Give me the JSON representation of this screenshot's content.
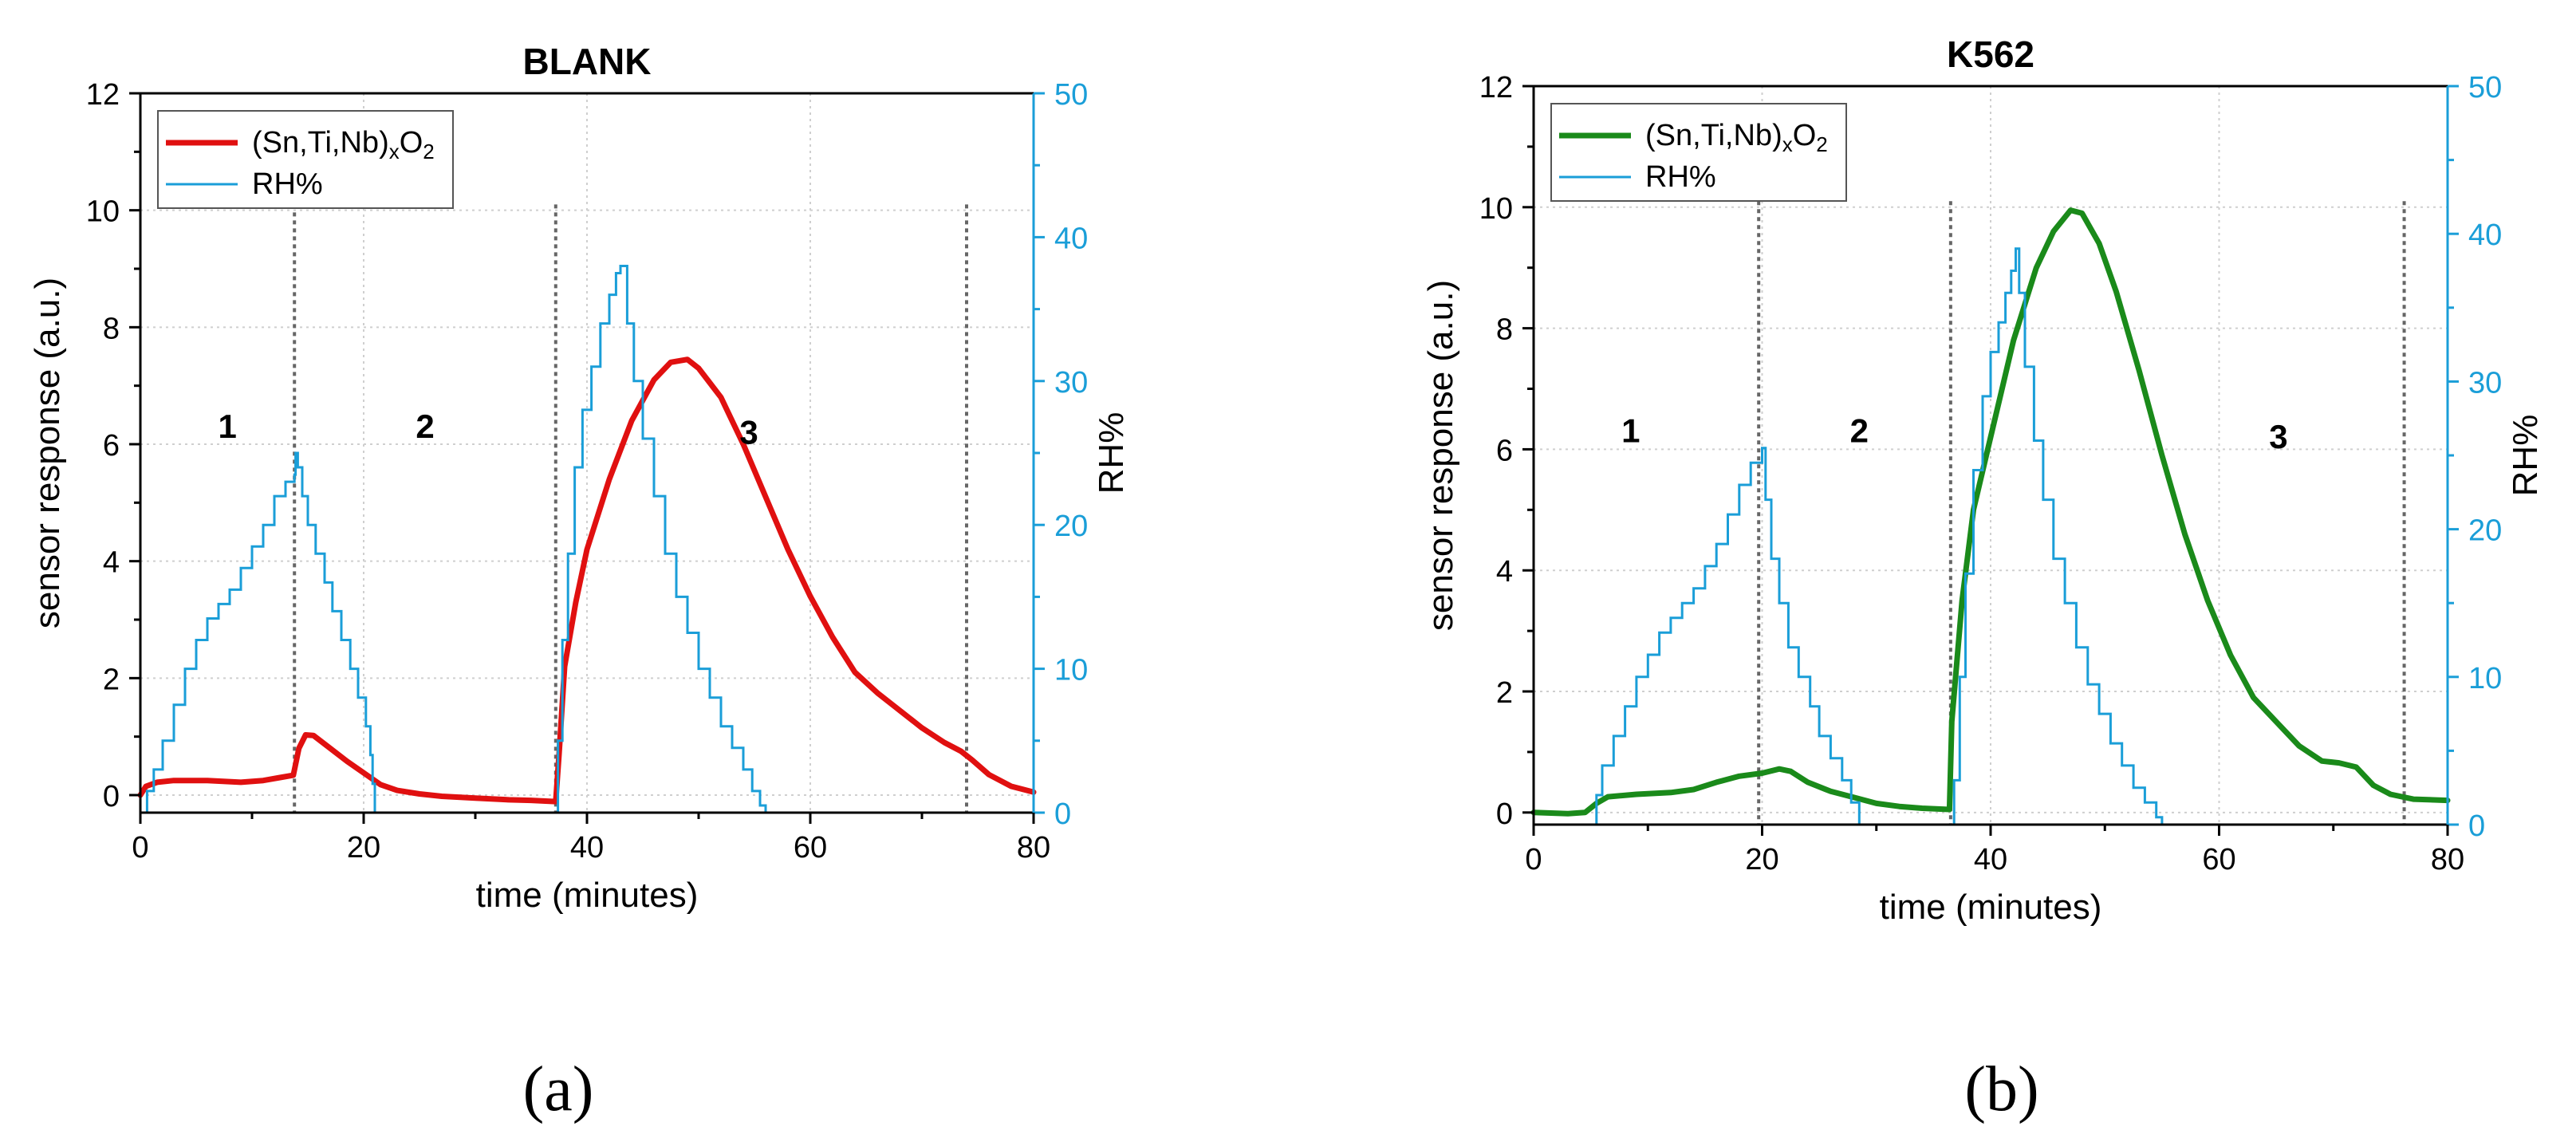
{
  "panels": [
    {
      "label": "(a)",
      "colors": {
        "response": "#e01010",
        "rh": "#1a9ed8"
      },
      "chart_data": {
        "type": "line",
        "title": "BLANK",
        "xlabel": "time (minutes)",
        "ylabel": "sensor response (a.u.)",
        "y2label": "RH%",
        "xlim": [
          0,
          80
        ],
        "ylim": [
          -0.3,
          12
        ],
        "y2lim": [
          0,
          50
        ],
        "xticks": [
          "0",
          "20",
          "40",
          "60",
          "80"
        ],
        "yticks": [
          "0",
          "2",
          "4",
          "6",
          "8",
          "10",
          "12"
        ],
        "y2ticks": [
          "0",
          "10",
          "20",
          "30",
          "40",
          "50"
        ],
        "grid": true,
        "legend_position": "top-left",
        "legend": [
          {
            "name": "(Sn,Ti,Nb)",
            "sub": "x",
            "tail": "O",
            "tail_sub": "2"
          },
          {
            "name": "RH%"
          }
        ],
        "phase_dividers": [
          13.8,
          37.2,
          74.0
        ],
        "phases": [
          {
            "text": "1",
            "x": 7.8,
            "y": 6.3
          },
          {
            "text": "2",
            "x": 25.5,
            "y": 6.3
          },
          {
            "text": "3",
            "x": 54.5,
            "y": 6.2
          }
        ],
        "series": [
          {
            "name": "(Sn,Ti,Nb)xO2",
            "axis": "left",
            "points": [
              [
                0,
                0
              ],
              [
                0.5,
                0.15
              ],
              [
                1.5,
                0.22
              ],
              [
                3,
                0.25
              ],
              [
                6,
                0.25
              ],
              [
                9,
                0.22
              ],
              [
                11,
                0.25
              ],
              [
                12.5,
                0.3
              ],
              [
                13.7,
                0.34
              ],
              [
                14.2,
                0.8
              ],
              [
                14.8,
                1.03
              ],
              [
                15.5,
                1.02
              ],
              [
                17,
                0.8
              ],
              [
                18.5,
                0.58
              ],
              [
                20,
                0.38
              ],
              [
                21.5,
                0.18
              ],
              [
                23,
                0.08
              ],
              [
                25,
                0.02
              ],
              [
                27,
                -0.02
              ],
              [
                30,
                -0.05
              ],
              [
                33,
                -0.08
              ],
              [
                35,
                -0.09
              ],
              [
                37.2,
                -0.11
              ],
              [
                37.5,
                0.7
              ],
              [
                38,
                2.2
              ],
              [
                39,
                3.3
              ],
              [
                40,
                4.2
              ],
              [
                42,
                5.4
              ],
              [
                44,
                6.4
              ],
              [
                46,
                7.1
              ],
              [
                47.5,
                7.4
              ],
              [
                49,
                7.45
              ],
              [
                50,
                7.3
              ],
              [
                52,
                6.8
              ],
              [
                54,
                6.0
              ],
              [
                56,
                5.1
              ],
              [
                58,
                4.2
              ],
              [
                60,
                3.4
              ],
              [
                62,
                2.7
              ],
              [
                64,
                2.1
              ],
              [
                66,
                1.75
              ],
              [
                68,
                1.45
              ],
              [
                70,
                1.15
              ],
              [
                72,
                0.9
              ],
              [
                73.5,
                0.75
              ],
              [
                74.5,
                0.6
              ],
              [
                76,
                0.35
              ],
              [
                78,
                0.15
              ],
              [
                80,
                0.05
              ]
            ]
          },
          {
            "name": "RH%",
            "axis": "right",
            "step": true,
            "points": [
              [
                0,
                0
              ],
              [
                0.6,
                0
              ],
              [
                0.6,
                1.5
              ],
              [
                1.2,
                3
              ],
              [
                2,
                5
              ],
              [
                3,
                7.5
              ],
              [
                4,
                10
              ],
              [
                5,
                12
              ],
              [
                6,
                13.5
              ],
              [
                7,
                14.5
              ],
              [
                8,
                15.5
              ],
              [
                9,
                17
              ],
              [
                10,
                18.5
              ],
              [
                11,
                20
              ],
              [
                12,
                22
              ],
              [
                13,
                23
              ],
              [
                13.8,
                23.5
              ],
              [
                13.9,
                25
              ],
              [
                14.1,
                24
              ],
              [
                14.5,
                22
              ],
              [
                15,
                20
              ],
              [
                15.7,
                18
              ],
              [
                16.5,
                16
              ],
              [
                17.2,
                14
              ],
              [
                18,
                12
              ],
              [
                18.8,
                10
              ],
              [
                19.5,
                8
              ],
              [
                20.2,
                6
              ],
              [
                20.6,
                4
              ],
              [
                20.8,
                2
              ],
              [
                21,
                0
              ],
              [
                37.2,
                0
              ],
              [
                37.4,
                5
              ],
              [
                37.8,
                12
              ],
              [
                38.3,
                18
              ],
              [
                38.9,
                24
              ],
              [
                39.6,
                28
              ],
              [
                40.4,
                31
              ],
              [
                41.2,
                34
              ],
              [
                42,
                36
              ],
              [
                42.6,
                37.5
              ],
              [
                43,
                38
              ],
              [
                43.4,
                38
              ],
              [
                43.6,
                34
              ],
              [
                44.2,
                30
              ],
              [
                45,
                26
              ],
              [
                46,
                22
              ],
              [
                47,
                18
              ],
              [
                48,
                15
              ],
              [
                49,
                12.5
              ],
              [
                50,
                10
              ],
              [
                51,
                8
              ],
              [
                52,
                6
              ],
              [
                53,
                4.5
              ],
              [
                54,
                3
              ],
              [
                54.8,
                1.5
              ],
              [
                55.5,
                0.5
              ],
              [
                56,
                0
              ]
            ]
          }
        ]
      }
    },
    {
      "label": "(b)",
      "colors": {
        "response": "#1a8a1a",
        "rh": "#1a9ed8"
      },
      "chart_data": {
        "type": "line",
        "title": "K562",
        "xlabel": "time (minutes)",
        "ylabel": "sensor response (a.u.)",
        "y2label": "RH%",
        "xlim": [
          0,
          80
        ],
        "ylim": [
          -0.2,
          12
        ],
        "y2lim": [
          0,
          50
        ],
        "xticks": [
          "0",
          "20",
          "40",
          "60",
          "80"
        ],
        "yticks": [
          "0",
          "2",
          "4",
          "6",
          "8",
          "10",
          "12"
        ],
        "y2ticks": [
          "0",
          "10",
          "20",
          "30",
          "40",
          "50"
        ],
        "grid": true,
        "legend_position": "top-left",
        "legend": [
          {
            "name": "(Sn,Ti,Nb)",
            "sub": "x",
            "tail": "O",
            "tail_sub": "2"
          },
          {
            "name": "RH%"
          }
        ],
        "phase_dividers": [
          19.7,
          36.5,
          76.2
        ],
        "phases": [
          {
            "text": "1",
            "x": 8.5,
            "y": 6.3
          },
          {
            "text": "2",
            "x": 28.5,
            "y": 6.3
          },
          {
            "text": "3",
            "x": 65.2,
            "y": 6.2
          }
        ],
        "series": [
          {
            "name": "(Sn,Ti,Nb)xO2",
            "axis": "left",
            "points": [
              [
                0,
                0
              ],
              [
                3,
                -0.02
              ],
              [
                4.5,
                0
              ],
              [
                5.5,
                0.15
              ],
              [
                6.5,
                0.26
              ],
              [
                9,
                0.3
              ],
              [
                12,
                0.33
              ],
              [
                14,
                0.38
              ],
              [
                16,
                0.5
              ],
              [
                18,
                0.6
              ],
              [
                20,
                0.65
              ],
              [
                21.5,
                0.72
              ],
              [
                22.5,
                0.68
              ],
              [
                24,
                0.5
              ],
              [
                26,
                0.35
              ],
              [
                28,
                0.25
              ],
              [
                30,
                0.15
              ],
              [
                32,
                0.1
              ],
              [
                34,
                0.07
              ],
              [
                36.4,
                0.05
              ],
              [
                36.6,
                1.5
              ],
              [
                37.5,
                3.5
              ],
              [
                38.5,
                5.0
              ],
              [
                40,
                6.2
              ],
              [
                42,
                7.8
              ],
              [
                44,
                9.0
              ],
              [
                45.5,
                9.6
              ],
              [
                47,
                9.95
              ],
              [
                48,
                9.9
              ],
              [
                49.5,
                9.4
              ],
              [
                51,
                8.6
              ],
              [
                53,
                7.3
              ],
              [
                55,
                5.9
              ],
              [
                57,
                4.6
              ],
              [
                59,
                3.5
              ],
              [
                61,
                2.6
              ],
              [
                63,
                1.9
              ],
              [
                65,
                1.5
              ],
              [
                67,
                1.1
              ],
              [
                69,
                0.85
              ],
              [
                70.5,
                0.82
              ],
              [
                72,
                0.75
              ],
              [
                73.5,
                0.45
              ],
              [
                75,
                0.3
              ],
              [
                77,
                0.22
              ],
              [
                80,
                0.2
              ]
            ]
          },
          {
            "name": "RH%",
            "axis": "right",
            "step": true,
            "points": [
              [
                0,
                0
              ],
              [
                5,
                0
              ],
              [
                5.3,
                0
              ],
              [
                5.5,
                2
              ],
              [
                6,
                4
              ],
              [
                7,
                6
              ],
              [
                8,
                8
              ],
              [
                9,
                10
              ],
              [
                10,
                11.5
              ],
              [
                11,
                13
              ],
              [
                12,
                14
              ],
              [
                13,
                15
              ],
              [
                14,
                16
              ],
              [
                15,
                17.5
              ],
              [
                16,
                19
              ],
              [
                17,
                21
              ],
              [
                18,
                23
              ],
              [
                19,
                24.5
              ],
              [
                20,
                25.5
              ],
              [
                20.3,
                22
              ],
              [
                20.8,
                18
              ],
              [
                21.5,
                15
              ],
              [
                22.3,
                12
              ],
              [
                23.2,
                10
              ],
              [
                24.2,
                8
              ],
              [
                25,
                6
              ],
              [
                26,
                4.5
              ],
              [
                27,
                3
              ],
              [
                27.8,
                1.5
              ],
              [
                28.5,
                0
              ],
              [
                36.5,
                0
              ],
              [
                36.8,
                3
              ],
              [
                37.3,
                10
              ],
              [
                37.8,
                17
              ],
              [
                38.5,
                24
              ],
              [
                39.3,
                29
              ],
              [
                40,
                32
              ],
              [
                40.7,
                34
              ],
              [
                41.3,
                36
              ],
              [
                41.8,
                37.5
              ],
              [
                42.2,
                39
              ],
              [
                42.5,
                36
              ],
              [
                43,
                31
              ],
              [
                43.8,
                26
              ],
              [
                44.6,
                22
              ],
              [
                45.5,
                18
              ],
              [
                46.5,
                15
              ],
              [
                47.5,
                12
              ],
              [
                48.5,
                9.5
              ],
              [
                49.5,
                7.5
              ],
              [
                50.5,
                5.5
              ],
              [
                51.5,
                4
              ],
              [
                52.5,
                2.5
              ],
              [
                53.5,
                1.5
              ],
              [
                54.5,
                0.5
              ],
              [
                55,
                0
              ]
            ]
          }
        ]
      }
    }
  ]
}
